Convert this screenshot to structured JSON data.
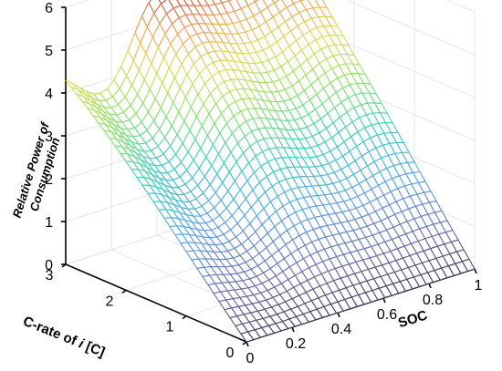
{
  "chart_data": {
    "type": "surface",
    "x_axis": {
      "label": "SOC",
      "range": [
        0,
        1
      ],
      "ticks": [
        "0",
        "0.2",
        "0.4",
        "0.6",
        "0.8",
        "1"
      ]
    },
    "y_axis": {
      "label_prefix": "C-rate of ",
      "label_var": "i",
      "label_suffix": " [C]",
      "range": [
        0,
        3
      ],
      "ticks": [
        "0",
        "1",
        "2",
        "3"
      ]
    },
    "z_axis": {
      "label_line1": "Relative Power of",
      "label_line2": "Consumption",
      "range": [
        0,
        6
      ],
      "ticks": [
        "0",
        "1",
        "2",
        "3",
        "4",
        "5",
        "6"
      ]
    },
    "grid": true,
    "colormap": "jet",
    "surface_approx": {
      "note_values": "approximate heights read from the plot",
      "corner_soc0_c3": 4.3,
      "corner_soc1_c3": 5.6,
      "corner_soc0_c0": 0.0,
      "corner_soc1_c0": 0.0
    }
  }
}
